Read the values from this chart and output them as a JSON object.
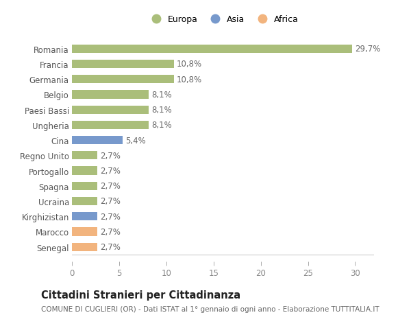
{
  "categories": [
    "Senegal",
    "Marocco",
    "Kirghizistan",
    "Ucraina",
    "Spagna",
    "Portogallo",
    "Regno Unito",
    "Cina",
    "Ungheria",
    "Paesi Bassi",
    "Belgio",
    "Germania",
    "Francia",
    "Romania"
  ],
  "values": [
    2.7,
    2.7,
    2.7,
    2.7,
    2.7,
    2.7,
    2.7,
    5.4,
    8.1,
    8.1,
    8.1,
    10.8,
    10.8,
    29.7
  ],
  "colors": [
    "#f2b47e",
    "#f2b47e",
    "#7799cc",
    "#aabe7a",
    "#aabe7a",
    "#aabe7a",
    "#aabe7a",
    "#7799cc",
    "#aabe7a",
    "#aabe7a",
    "#aabe7a",
    "#aabe7a",
    "#aabe7a",
    "#aabe7a"
  ],
  "labels": [
    "2,7%",
    "2,7%",
    "2,7%",
    "2,7%",
    "2,7%",
    "2,7%",
    "2,7%",
    "5,4%",
    "8,1%",
    "8,1%",
    "8,1%",
    "10,8%",
    "10,8%",
    "29,7%"
  ],
  "legend": [
    {
      "label": "Europa",
      "color": "#aabe7a"
    },
    {
      "label": "Asia",
      "color": "#7799cc"
    },
    {
      "label": "Africa",
      "color": "#f2b47e"
    }
  ],
  "xlim": [
    0,
    32
  ],
  "xticks": [
    0,
    5,
    10,
    15,
    20,
    25,
    30
  ],
  "title": "Cittadini Stranieri per Cittadinanza",
  "subtitle": "COMUNE DI CUGLIERI (OR) - Dati ISTAT al 1° gennaio di ogni anno - Elaborazione TUTTITALIA.IT",
  "bg_color": "#ffffff",
  "bar_height": 0.55,
  "label_fontsize": 8.5,
  "tick_fontsize": 8.5,
  "title_fontsize": 10.5,
  "subtitle_fontsize": 7.5
}
